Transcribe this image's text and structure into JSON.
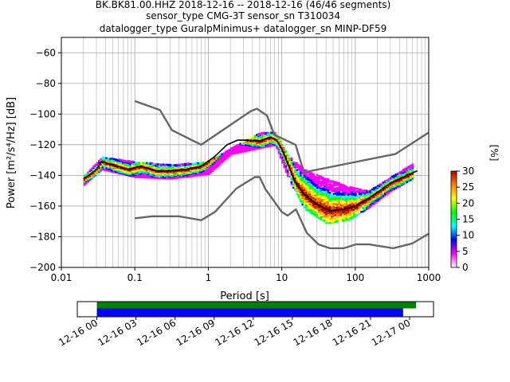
{
  "chart_data": [
    {
      "type": "heatmap",
      "title_lines": [
        "BK.BK81.00.HHZ   2018-12-16 -- 2018-12-16  (46/46 segments)",
        "sensor_type CMG-3T sensor_sn T310034",
        "datalogger_type GuralpMinimus+ datalogger_sn MINP-DF59"
      ],
      "xlabel": "Period [s]",
      "ylabel": "Power [m²/s⁴/Hz] [dB]",
      "xscale": "log",
      "xlim": [
        0.01,
        1000
      ],
      "ylim": [
        -200,
        -50
      ],
      "xticks": [
        0.01,
        0.1,
        1,
        10,
        100,
        1000
      ],
      "xtick_labels": [
        "0.01",
        "0.1",
        "1",
        "10",
        "100",
        "1000"
      ],
      "yticks": [
        -200,
        -180,
        -160,
        -140,
        -120,
        -100,
        -80,
        -60
      ],
      "ytick_labels": [
        "−200",
        "−180",
        "−160",
        "−140",
        "−120",
        "−100",
        "−80",
        "−60"
      ],
      "grid": true,
      "colorbar": {
        "label": "[%]",
        "range": [
          0,
          30
        ],
        "ticks": [
          0,
          5,
          10,
          15,
          20,
          25,
          30
        ],
        "tick_labels": [
          "0",
          "5",
          "10",
          "15",
          "20",
          "25",
          "30"
        ],
        "colors": [
          "#ffffff",
          "#ff00ff",
          "#0000ff",
          "#00ffff",
          "#00ff00",
          "#ffff00",
          "#ff8000",
          "#b00000"
        ]
      },
      "noise_model_high": {
        "period": [
          0.1,
          0.22,
          0.32,
          0.8,
          3.8,
          4.6,
          6.3,
          7.9,
          15.4,
          20,
          354.8,
          1000
        ],
        "power": [
          -91.5,
          -97.4,
          -110.5,
          -120,
          -98,
          -96.5,
          -101,
          -113.5,
          -120,
          -138,
          -126,
          -112
        ]
      },
      "noise_model_low": {
        "period": [
          0.1,
          0.17,
          0.4,
          0.8,
          1.24,
          2.4,
          4.3,
          5,
          6,
          10,
          12,
          15.6,
          21.9,
          31.6,
          45,
          70,
          101,
          154,
          328,
          600,
          1000
        ],
        "power": [
          -168,
          -166.7,
          -166.7,
          -169.2,
          -163.7,
          -148.6,
          -141.1,
          -141.1,
          -149,
          -163.8,
          -166.2,
          -162.1,
          -177.5,
          -185,
          -187.5,
          -187.5,
          -185,
          -185,
          -187.5,
          -184.4,
          -178
        ]
      },
      "mean_psd": {
        "period": [
          0.02,
          0.025,
          0.03,
          0.035,
          0.05,
          0.08,
          0.12,
          0.2,
          0.3,
          0.5,
          0.8,
          1.2,
          1.8,
          2.5,
          3.5,
          5,
          7,
          8.5,
          10,
          12,
          15,
          20,
          30,
          45,
          70,
          100,
          150,
          200,
          300,
          500,
          700
        ],
        "power": [
          -142,
          -139,
          -136,
          -131,
          -133,
          -136,
          -134,
          -137,
          -137,
          -136,
          -134,
          -128,
          -120,
          -117,
          -117,
          -117.5,
          -115,
          -117,
          -123,
          -132,
          -144,
          -152,
          -159,
          -163,
          -162,
          -160,
          -155,
          -151,
          -145,
          -140,
          -137
        ]
      },
      "histogram_spread": {
        "period": [
          0.02,
          0.035,
          0.1,
          0.3,
          1,
          2,
          5,
          8,
          12,
          20,
          40,
          80,
          150,
          300,
          600
        ],
        "upper": [
          -140,
          -128,
          -131,
          -133,
          -131,
          -122,
          -112,
          -112,
          -127,
          -136,
          -142,
          -147,
          -150,
          -141,
          -132
        ],
        "lower": [
          -146,
          -136,
          -141,
          -142,
          -139,
          -126,
          -122,
          -120,
          -142,
          -162,
          -171,
          -169,
          -161,
          -150,
          -142
        ]
      }
    },
    {
      "type": "timeline",
      "xlim": [
        "2018-12-15 22:30",
        "2018-12-17 01:50"
      ],
      "tick_labels": [
        "12-16 00",
        "12-16 03",
        "12-16 06",
        "12-16 09",
        "12-16 12",
        "12-16 15",
        "12-16 18",
        "12-16 21",
        "12-17 00"
      ],
      "bars": [
        {
          "color": "#008000",
          "start": "2018-12-16 00:00",
          "end": "2018-12-17 00:30"
        },
        {
          "color": "#0000ff",
          "start": "2018-12-16 00:00",
          "end": "2018-12-16 23:30"
        }
      ]
    }
  ]
}
